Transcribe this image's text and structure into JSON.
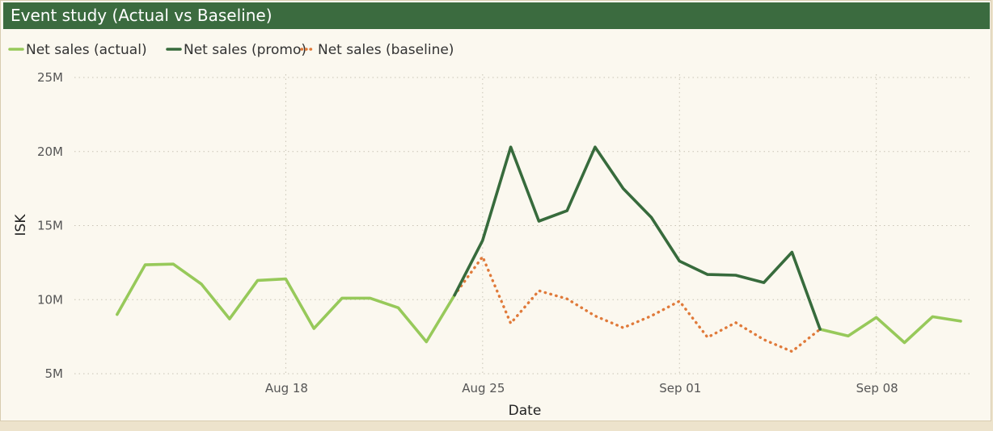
{
  "title": "Event study (Actual vs Baseline)",
  "colors": {
    "header_bg": "#3b6b3f",
    "card_bg": "#fbf8ef",
    "actual": "#97c95a",
    "promo": "#376b3c",
    "baseline": "#e07a3a"
  },
  "chart_data": {
    "type": "line",
    "title": "Event study (Actual vs Baseline)",
    "xlabel": "Date",
    "ylabel": "ISK",
    "ylim": [
      5000000,
      25000000
    ],
    "xlim": [
      "2025-08-11",
      "2025-09-11"
    ],
    "y_ticks": [
      {
        "value": 5000000,
        "label": "5M"
      },
      {
        "value": 10000000,
        "label": "10M"
      },
      {
        "value": 15000000,
        "label": "15M"
      },
      {
        "value": 20000000,
        "label": "20M"
      },
      {
        "value": 25000000,
        "label": "25M"
      }
    ],
    "x_ticks": [
      {
        "value": "2025-08-18",
        "label": "Aug 18"
      },
      {
        "value": "2025-08-25",
        "label": "Aug 25"
      },
      {
        "value": "2025-09-01",
        "label": "Sep 01"
      },
      {
        "value": "2025-09-08",
        "label": "Sep 08"
      }
    ],
    "grid": true,
    "legend_position": "top-left",
    "series": [
      {
        "name": "Net sales (actual)",
        "color": "#97c95a",
        "style": "solid",
        "points": [
          {
            "date": "2025-08-12",
            "y": 9000000
          },
          {
            "date": "2025-08-13",
            "y": 12350000
          },
          {
            "date": "2025-08-14",
            "y": 12400000
          },
          {
            "date": "2025-08-15",
            "y": 11050000
          },
          {
            "date": "2025-08-16",
            "y": 8700000
          },
          {
            "date": "2025-08-17",
            "y": 11300000
          },
          {
            "date": "2025-08-18",
            "y": 11400000
          },
          {
            "date": "2025-08-19",
            "y": 8050000
          },
          {
            "date": "2025-08-20",
            "y": 10100000
          },
          {
            "date": "2025-08-21",
            "y": 10100000
          },
          {
            "date": "2025-08-22",
            "y": 9450000
          },
          {
            "date": "2025-08-23",
            "y": 7150000
          },
          {
            "date": "2025-08-24",
            "y": 10300000
          },
          {
            "date": "2025-09-06",
            "y": 8000000
          },
          {
            "date": "2025-09-07",
            "y": 7550000
          },
          {
            "date": "2025-09-08",
            "y": 8800000
          },
          {
            "date": "2025-09-09",
            "y": 7100000
          },
          {
            "date": "2025-09-10",
            "y": 8850000
          },
          {
            "date": "2025-09-11",
            "y": 8550000
          }
        ]
      },
      {
        "name": "Net sales (promo)",
        "color": "#376b3c",
        "style": "solid",
        "points": [
          {
            "date": "2025-08-24",
            "y": 10300000
          },
          {
            "date": "2025-08-25",
            "y": 14000000
          },
          {
            "date": "2025-08-26",
            "y": 20300000
          },
          {
            "date": "2025-08-27",
            "y": 15300000
          },
          {
            "date": "2025-08-28",
            "y": 16000000
          },
          {
            "date": "2025-08-29",
            "y": 20300000
          },
          {
            "date": "2025-08-30",
            "y": 17500000
          },
          {
            "date": "2025-08-31",
            "y": 15550000
          },
          {
            "date": "2025-09-01",
            "y": 12600000
          },
          {
            "date": "2025-09-02",
            "y": 11700000
          },
          {
            "date": "2025-09-03",
            "y": 11650000
          },
          {
            "date": "2025-09-04",
            "y": 11150000
          },
          {
            "date": "2025-09-05",
            "y": 13200000
          },
          {
            "date": "2025-09-06",
            "y": 8000000
          }
        ]
      },
      {
        "name": "Net sales (baseline)",
        "color": "#e07a3a",
        "style": "dotted",
        "points": [
          {
            "date": "2025-08-24",
            "y": 10300000
          },
          {
            "date": "2025-08-25",
            "y": 12900000
          },
          {
            "date": "2025-08-26",
            "y": 8400000
          },
          {
            "date": "2025-08-27",
            "y": 10600000
          },
          {
            "date": "2025-08-28",
            "y": 10050000
          },
          {
            "date": "2025-08-29",
            "y": 8900000
          },
          {
            "date": "2025-08-30",
            "y": 8100000
          },
          {
            "date": "2025-08-31",
            "y": 8900000
          },
          {
            "date": "2025-09-01",
            "y": 9900000
          },
          {
            "date": "2025-09-02",
            "y": 7450000
          },
          {
            "date": "2025-09-03",
            "y": 8450000
          },
          {
            "date": "2025-09-04",
            "y": 7300000
          },
          {
            "date": "2025-09-05",
            "y": 6500000
          },
          {
            "date": "2025-09-06",
            "y": 8000000
          }
        ]
      }
    ]
  }
}
